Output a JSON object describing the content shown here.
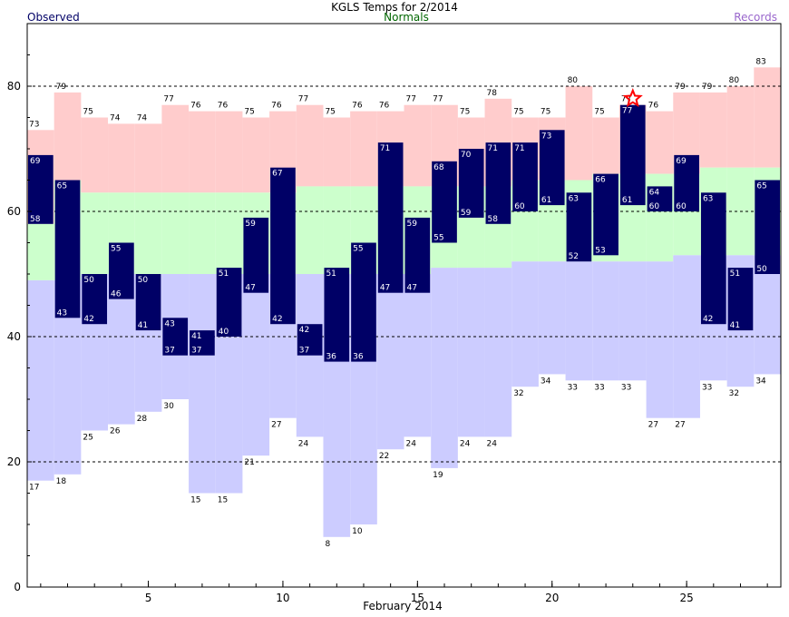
{
  "chart_data": {
    "type": "bar",
    "title": "KGLS Temps for 2/2014",
    "xlabel": "February 2014",
    "ylabel": "",
    "legend": {
      "observed": "Observed",
      "normals": "Normals",
      "records": "Records"
    },
    "colors": {
      "observed": "#000066",
      "normal": "#ccffcc",
      "record_high": "#ffcccc",
      "record_low": "#ccccff",
      "record_star": "#ff0000",
      "legend_observed": "#000066",
      "legend_normals": "#006600",
      "legend_records": "#9966cc"
    },
    "ylim": [
      0,
      90
    ],
    "yticks": [
      0,
      20,
      40,
      60,
      80
    ],
    "gridlines": [
      20,
      40,
      60,
      80
    ],
    "xlim": [
      0.5,
      28.5
    ],
    "xticks": [
      5,
      10,
      15,
      20,
      25
    ],
    "days": [
      1,
      2,
      3,
      4,
      5,
      6,
      7,
      8,
      9,
      10,
      11,
      12,
      13,
      14,
      15,
      16,
      17,
      18,
      19,
      20,
      21,
      22,
      23,
      24,
      25,
      26,
      27,
      28
    ],
    "record_high": [
      73,
      79,
      75,
      74,
      74,
      77,
      76,
      76,
      75,
      76,
      77,
      75,
      76,
      76,
      77,
      77,
      75,
      78,
      75,
      75,
      80,
      75,
      77,
      76,
      79,
      79,
      80,
      83
    ],
    "record_low": [
      17,
      18,
      25,
      26,
      28,
      30,
      15,
      15,
      21,
      27,
      24,
      8,
      10,
      22,
      24,
      19,
      24,
      24,
      32,
      34,
      33,
      33,
      33,
      27,
      27,
      33,
      32,
      34
    ],
    "normal_high": [
      58,
      65,
      63,
      63,
      63,
      63,
      63,
      63,
      63,
      63,
      64,
      64,
      64,
      64,
      64,
      64,
      64,
      64,
      65,
      65,
      65,
      66,
      66,
      66,
      66,
      67,
      67,
      67
    ],
    "normal_low": [
      49,
      49,
      50,
      50,
      50,
      50,
      50,
      50,
      50,
      50,
      50,
      50,
      50,
      50,
      50,
      51,
      51,
      51,
      52,
      52,
      52,
      52,
      52,
      52,
      53,
      53,
      53,
      53
    ],
    "observed_high": [
      69,
      65,
      50,
      55,
      50,
      43,
      41,
      51,
      59,
      67,
      42,
      51,
      55,
      71,
      59,
      68,
      70,
      71,
      71,
      73,
      63,
      66,
      77,
      64,
      69,
      63,
      51,
      65
    ],
    "observed_low": [
      58,
      43,
      42,
      46,
      41,
      37,
      37,
      40,
      47,
      42,
      37,
      36,
      36,
      47,
      47,
      55,
      59,
      58,
      60,
      61,
      52,
      53,
      61,
      60,
      60,
      42,
      41,
      50
    ],
    "record_set_days": [
      23
    ]
  }
}
